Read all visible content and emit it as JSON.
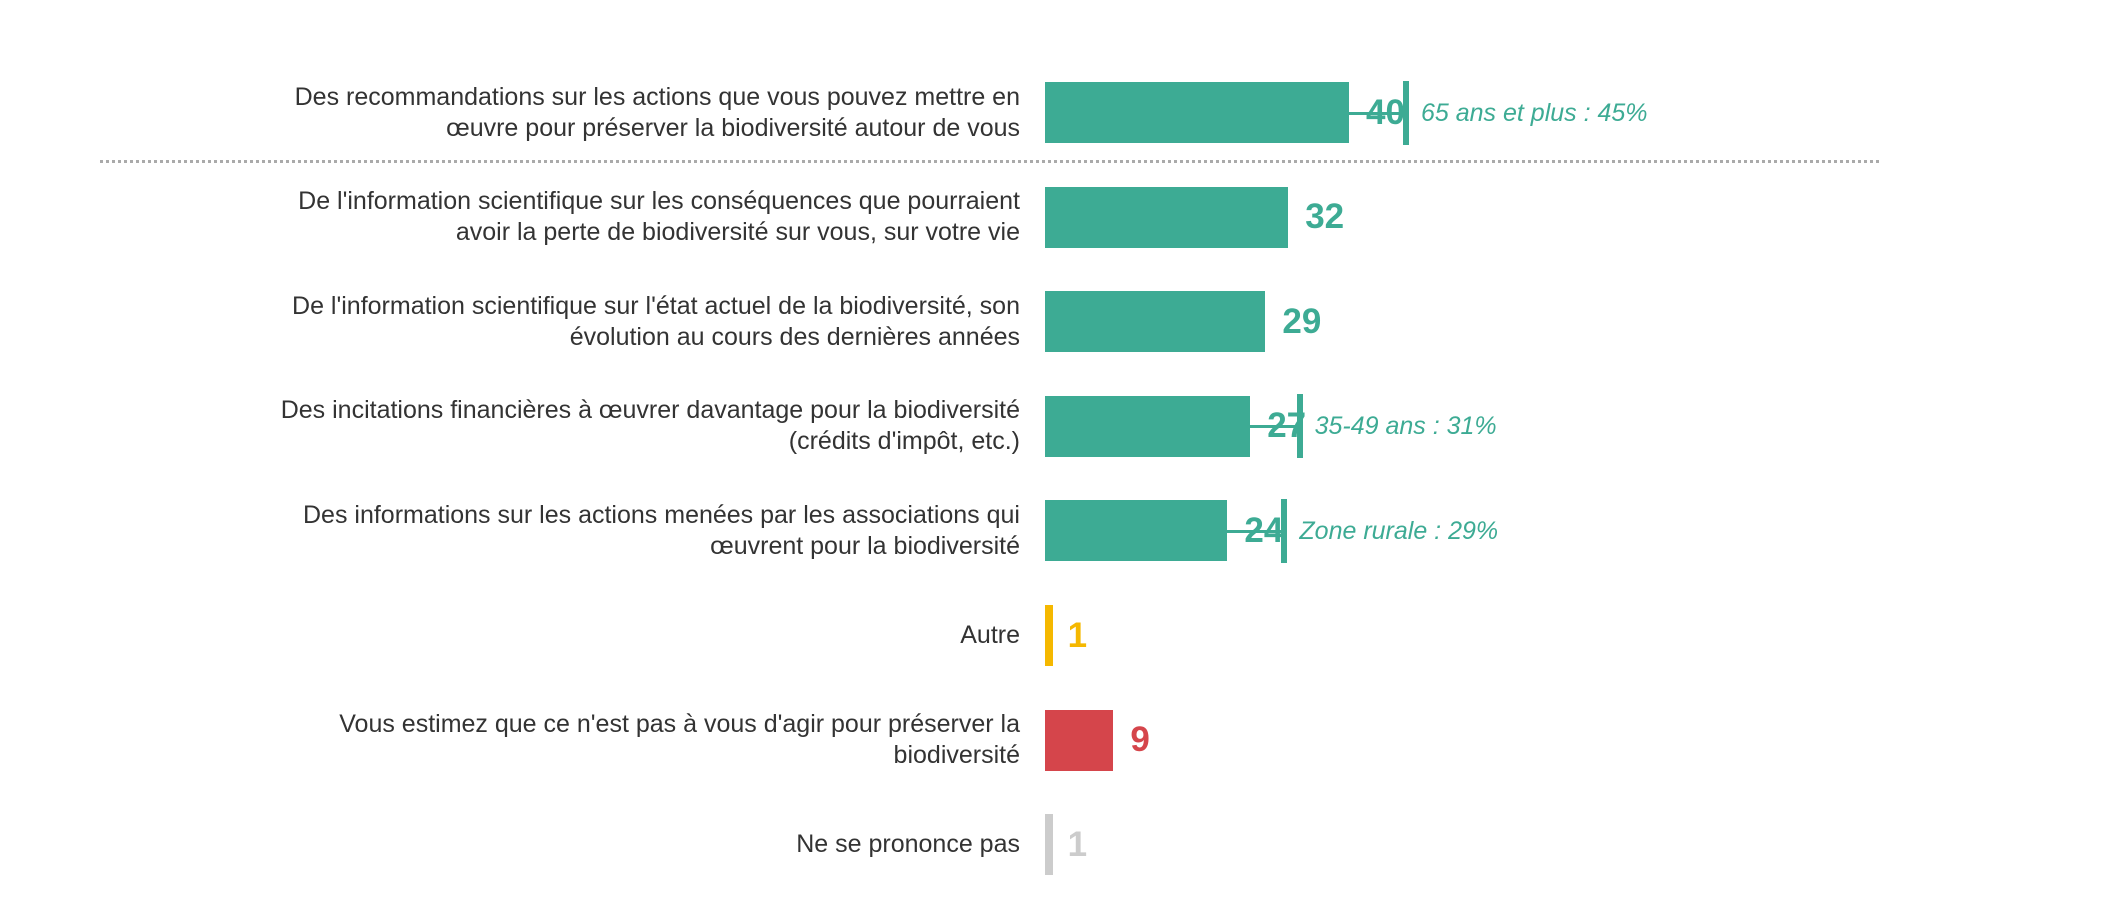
{
  "chart_data": {
    "type": "bar",
    "orientation": "horizontal",
    "title": "",
    "xlabel": "",
    "ylabel": "",
    "xlim": [
      0,
      100
    ],
    "grid": false,
    "legend": "none",
    "categories": [
      "Des recommandations sur les actions que vous pouvez mettre en œuvre pour préserver la biodiversité autour de vous",
      "De l'information scientifique sur les conséquences que pourraient avoir la perte de biodiversité sur vous, sur votre vie",
      "De l'information scientifique sur l'état actuel de la biodiversité, son évolution au cours des dernières années",
      "Des incitations financières à œuvrer davantage pour la biodiversité (crédits d'impôt, etc.)",
      "Des informations sur les actions menées par les associations qui œuvrent pour la biodiversité",
      "Autre",
      "Vous estimez que ce n'est pas à vous d'agir pour préserver la biodiversité",
      "Ne se prononce pas"
    ],
    "label_lines": [
      [
        "Des recommandations sur les actions que vous pouvez mettre en",
        "œuvre pour préserver la biodiversité autour de vous"
      ],
      [
        "De l'information scientifique sur les conséquences que pourraient",
        "avoir la perte de biodiversité sur vous, sur votre vie"
      ],
      [
        "De l'information scientifique sur l'état actuel de la biodiversité, son",
        "évolution au cours des dernières années"
      ],
      [
        "Des incitations financières à œuvrer davantage pour la biodiversité",
        "(crédits d'impôt, etc.)"
      ],
      [
        "Des informations sur les actions menées par les associations qui",
        "œuvrent pour la biodiversité"
      ],
      [
        "Autre"
      ],
      [
        "Vous estimez que ce n'est pas à vous d'agir pour préserver la",
        "biodiversité"
      ],
      [
        "Ne se prononce pas"
      ]
    ],
    "values": [
      40,
      32,
      29,
      27,
      24,
      1,
      9,
      1
    ],
    "value_labels": [
      "40",
      "32",
      "29",
      "27",
      "24",
      "1",
      "9",
      "1"
    ],
    "colors": [
      "#3dab94",
      "#3dab94",
      "#3dab94",
      "#3dab94",
      "#3dab94",
      "#f5b800",
      "#d5454b",
      "#cccccc"
    ],
    "annotations": [
      {
        "category_index": 0,
        "text": "65 ans et plus : 45%",
        "value": 45
      },
      {
        "category_index": 3,
        "text": "35-49 ans : 31%",
        "value": 31
      },
      {
        "category_index": 4,
        "text": "Zone rurale : 29%",
        "value": 29
      }
    ],
    "annotation_color": "#3dab94",
    "separator_after_index": 0
  }
}
